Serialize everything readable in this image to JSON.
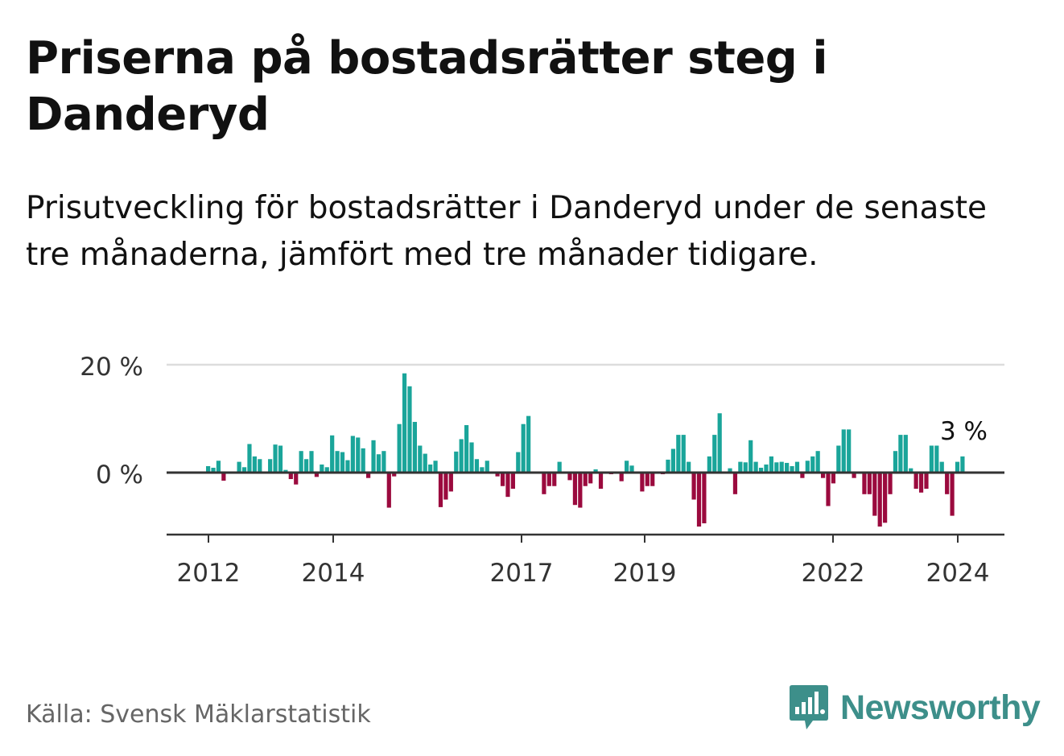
{
  "title": "Priserna på bostadsrätter steg i Danderyd",
  "subtitle": "Prisutveckling för bostadsrätter i Danderyd under de senaste tre månaderna, jämfört med tre månader tidigare.",
  "source": "Källa: Svensk Mäklarstatistik",
  "brand": "Newsworthy",
  "colors": {
    "positive": "#1aa59a",
    "negative": "#9b0a3e",
    "brand": "#3d8f8a",
    "grid": "#dddddd",
    "axis": "#333333"
  },
  "chart_data": {
    "type": "bar",
    "title": "Priserna på bostadsrätter steg i Danderyd",
    "xlabel": "",
    "ylabel": "",
    "ylim": [
      -11.5,
      20
    ],
    "y_ticks": [
      {
        "value": 0,
        "label": "0 %"
      },
      {
        "value": 20,
        "label": "20 %"
      }
    ],
    "x_ticks": [
      "2012",
      "2014",
      "2017",
      "2019",
      "2022",
      "2024"
    ],
    "last_value_label": "3 %",
    "values": [
      1.2,
      0.9,
      2.2,
      -1.5,
      0,
      0,
      2,
      1,
      5.3,
      3,
      2.5,
      0,
      2.5,
      5.2,
      5,
      0.5,
      -1.2,
      -2.2,
      4,
      2.5,
      4,
      -0.8,
      1.5,
      1,
      6.9,
      4,
      3.8,
      2.3,
      6.8,
      6.5,
      4.5,
      -1,
      6,
      3.4,
      4,
      -6.5,
      -0.7,
      9,
      18.4,
      16,
      9.4,
      5,
      3.5,
      1.5,
      2.2,
      -6.4,
      -5,
      -3.5,
      3.9,
      6.2,
      8.8,
      5.6,
      2.5,
      1,
      2.2,
      0,
      -0.7,
      -2.5,
      -4.5,
      -3,
      3.8,
      9,
      10.5,
      0,
      0,
      -4,
      -2.5,
      -2.5,
      2,
      0,
      -1.4,
      -6,
      -6.5,
      -2.5,
      -2,
      0.6,
      -3,
      0,
      -0.3,
      0,
      -1.6,
      2.2,
      1.3,
      0,
      -3.5,
      -2.5,
      -2.5,
      0,
      -0.3,
      2.4,
      4.4,
      7,
      7,
      2,
      -5,
      -10,
      -9.4,
      3,
      7,
      11,
      0,
      0.8,
      -4,
      2,
      1.9,
      6,
      2,
      0.9,
      1.5,
      3,
      1.9,
      2,
      1.8,
      1.2,
      2,
      -1,
      2.2,
      3,
      4,
      -1,
      -6.2,
      -2,
      5,
      8,
      8,
      -1,
      0,
      -4,
      -4,
      -8,
      -10,
      -9.3,
      -4,
      4,
      7,
      7,
      0.8,
      -3,
      -3.7,
      -3,
      5,
      5,
      2,
      -4,
      -8,
      2,
      3
    ]
  }
}
